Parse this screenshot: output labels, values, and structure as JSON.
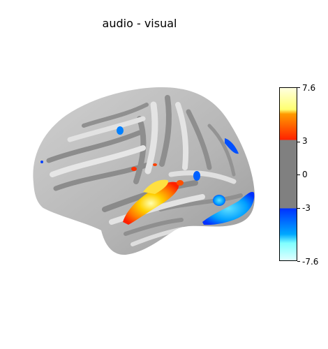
{
  "title": "audio - visual",
  "colorbar": {
    "ticks": [
      "7.6",
      "3",
      "0",
      "-3",
      "-7.6"
    ],
    "range": [
      -7.6,
      7.6
    ],
    "threshold": 3,
    "colors": {
      "pos_low": "#ff2000",
      "pos_mid": "#ff9a00",
      "pos_high": "#ffff70",
      "pos_top": "#ffffe0",
      "neutral": "#808080",
      "neg_low": "#0030ff",
      "neg_mid": "#00a8ff",
      "neg_high": "#80ffff",
      "neg_bottom": "#e0ffff"
    }
  },
  "surface": {
    "base_color": "#bdbdbd",
    "sulcus_color": "#8a8a8a",
    "gyrus_color": "#e2e2e2"
  }
}
